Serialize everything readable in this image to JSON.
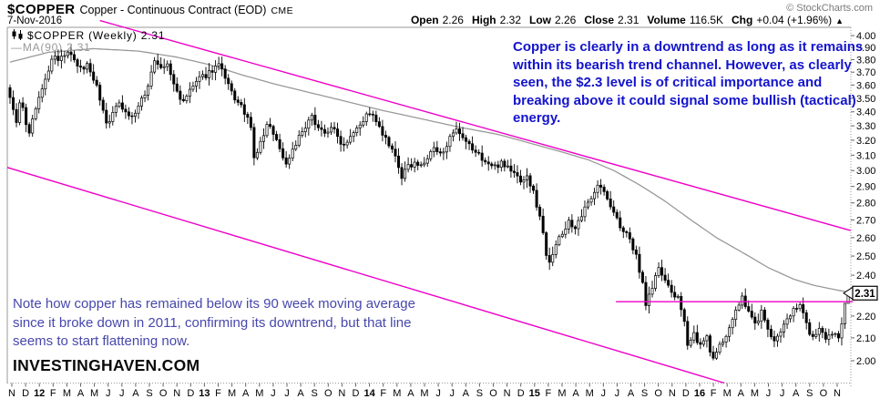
{
  "header": {
    "symbol": "$COPPER",
    "description": "Copper - Continuous Contract (EOD)",
    "exchange": "CME",
    "source": "© StockCharts.com",
    "date": "7-Nov-2016",
    "quote": [
      {
        "label": "Open",
        "value": "2.26"
      },
      {
        "label": "High",
        "value": "2.32"
      },
      {
        "label": "Low",
        "value": "2.26"
      },
      {
        "label": "Close",
        "value": "2.31"
      },
      {
        "label": "Volume",
        "value": "116.5K"
      },
      {
        "label": "Chg",
        "value": "+0.04 (+1.96%)"
      }
    ],
    "chg_icon": "▲"
  },
  "legend": {
    "series_label": "$COPPER (Weekly) 2.31",
    "ma_dash": "—",
    "ma_label": "MA(90) 2.31"
  },
  "annotations": {
    "top_note": "Copper is clearly in a downtrend as long as it remains within its bearish trend channel. However, as clearly seen, the $2.3 level is of critical importance and breaking above it could signal some bullish (tactical) energy.",
    "bottom_note": "Note how copper has remained below its 90 week moving average since it broke down in 2011, confirming its downtrend, but that line seems to start flattening now.",
    "watermark": "INVESTINGHAVEN.COM",
    "price_callout": "2.31"
  },
  "colors": {
    "trend_magenta": "#ee00c8",
    "ma_gray": "#999999",
    "candle_black": "#000000",
    "axis_gray": "#9a9a9a",
    "top_note_blue": "#1414cc",
    "bottom_note_blue": "#4747ad"
  },
  "chart_data": {
    "type": "candlestick",
    "symbol": "$COPPER",
    "timeframe": "weekly",
    "title": "$COPPER (Weekly)",
    "y_axis": {
      "scale": "log",
      "min": 1.907,
      "max": 4.071,
      "tick_min": 2.0,
      "tick_max": 4.0,
      "tick_step": 0.1
    },
    "x_axis_months": [
      "N",
      "D",
      "12",
      "F",
      "M",
      "A",
      "M",
      "J",
      "J",
      "A",
      "S",
      "O",
      "N",
      "D",
      "13",
      "F",
      "M",
      "A",
      "M",
      "J",
      "J",
      "A",
      "S",
      "O",
      "N",
      "D",
      "14",
      "F",
      "M",
      "A",
      "M",
      "J",
      "J",
      "A",
      "S",
      "O",
      "N",
      "D",
      "15",
      "F",
      "M",
      "A",
      "M",
      "J",
      "J",
      "A",
      "S",
      "O",
      "N",
      "D",
      "16",
      "F",
      "M",
      "A",
      "M",
      "J",
      "J",
      "A",
      "S",
      "O",
      "N"
    ],
    "weeks_total": 262,
    "first_open": 3.58,
    "close_anchors": [
      [
        0,
        3.52
      ],
      [
        1,
        3.4
      ],
      [
        2,
        3.34
      ],
      [
        3,
        3.45
      ],
      [
        4,
        3.42
      ],
      [
        5,
        3.3
      ],
      [
        6,
        3.26
      ],
      [
        7,
        3.33
      ],
      [
        8,
        3.44
      ],
      [
        9,
        3.5
      ],
      [
        10,
        3.56
      ],
      [
        12,
        3.72
      ],
      [
        14,
        3.84
      ],
      [
        15,
        3.78
      ],
      [
        16,
        3.82
      ],
      [
        18,
        3.86
      ],
      [
        20,
        3.78
      ],
      [
        22,
        3.72
      ],
      [
        24,
        3.76
      ],
      [
        26,
        3.66
      ],
      [
        28,
        3.5
      ],
      [
        30,
        3.32
      ],
      [
        32,
        3.38
      ],
      [
        34,
        3.48
      ],
      [
        36,
        3.4
      ],
      [
        38,
        3.36
      ],
      [
        40,
        3.44
      ],
      [
        42,
        3.52
      ],
      [
        44,
        3.7
      ],
      [
        45,
        3.8
      ],
      [
        47,
        3.72
      ],
      [
        49,
        3.76
      ],
      [
        51,
        3.6
      ],
      [
        54,
        3.46
      ],
      [
        56,
        3.56
      ],
      [
        58,
        3.62
      ],
      [
        60,
        3.66
      ],
      [
        63,
        3.72
      ],
      [
        65,
        3.76
      ],
      [
        67,
        3.64
      ],
      [
        69,
        3.54
      ],
      [
        71,
        3.46
      ],
      [
        73,
        3.4
      ],
      [
        75,
        3.28
      ],
      [
        76,
        3.07
      ],
      [
        78,
        3.18
      ],
      [
        80,
        3.3
      ],
      [
        82,
        3.26
      ],
      [
        84,
        3.14
      ],
      [
        86,
        3.04
      ],
      [
        88,
        3.14
      ],
      [
        90,
        3.22
      ],
      [
        92,
        3.28
      ],
      [
        94,
        3.36
      ],
      [
        96,
        3.3
      ],
      [
        98,
        3.24
      ],
      [
        100,
        3.3
      ],
      [
        102,
        3.22
      ],
      [
        104,
        3.17
      ],
      [
        106,
        3.24
      ],
      [
        108,
        3.3
      ],
      [
        110,
        3.34
      ],
      [
        112,
        3.4
      ],
      [
        114,
        3.32
      ],
      [
        116,
        3.24
      ],
      [
        118,
        3.16
      ],
      [
        120,
        3.08
      ],
      [
        122,
        2.96
      ],
      [
        124,
        3.02
      ],
      [
        126,
        3.06
      ],
      [
        128,
        3.02
      ],
      [
        130,
        3.08
      ],
      [
        132,
        3.14
      ],
      [
        134,
        3.1
      ],
      [
        136,
        3.18
      ],
      [
        139,
        3.26
      ],
      [
        141,
        3.2
      ],
      [
        143,
        3.16
      ],
      [
        145,
        3.12
      ],
      [
        147,
        3.08
      ],
      [
        149,
        3.04
      ],
      [
        151,
        3.02
      ],
      [
        153,
        3.06
      ],
      [
        155,
        3.02
      ],
      [
        157,
        2.98
      ],
      [
        159,
        2.94
      ],
      [
        161,
        2.96
      ],
      [
        163,
        2.86
      ],
      [
        165,
        2.72
      ],
      [
        167,
        2.52
      ],
      [
        168,
        2.48
      ],
      [
        170,
        2.56
      ],
      [
        172,
        2.62
      ],
      [
        174,
        2.7
      ],
      [
        176,
        2.64
      ],
      [
        178,
        2.72
      ],
      [
        180,
        2.8
      ],
      [
        182,
        2.88
      ],
      [
        183,
        2.92
      ],
      [
        185,
        2.86
      ],
      [
        187,
        2.78
      ],
      [
        189,
        2.7
      ],
      [
        191,
        2.64
      ],
      [
        193,
        2.58
      ],
      [
        195,
        2.5
      ],
      [
        197,
        2.36
      ],
      [
        198,
        2.26
      ],
      [
        200,
        2.34
      ],
      [
        202,
        2.44
      ],
      [
        204,
        2.36
      ],
      [
        206,
        2.32
      ],
      [
        208,
        2.28
      ],
      [
        210,
        2.16
      ],
      [
        211,
        2.08
      ],
      [
        213,
        2.12
      ],
      [
        215,
        2.06
      ],
      [
        217,
        2.1
      ],
      [
        219,
        2.0
      ],
      [
        221,
        2.06
      ],
      [
        223,
        2.12
      ],
      [
        225,
        2.18
      ],
      [
        227,
        2.26
      ],
      [
        228,
        2.28
      ],
      [
        230,
        2.22
      ],
      [
        232,
        2.16
      ],
      [
        234,
        2.22
      ],
      [
        236,
        2.14
      ],
      [
        238,
        2.08
      ],
      [
        240,
        2.12
      ],
      [
        242,
        2.18
      ],
      [
        244,
        2.24
      ],
      [
        246,
        2.26
      ],
      [
        248,
        2.16
      ],
      [
        250,
        2.1
      ],
      [
        252,
        2.14
      ],
      [
        254,
        2.08
      ],
      [
        256,
        2.12
      ],
      [
        258,
        2.1
      ],
      [
        259,
        2.17
      ],
      [
        260,
        2.26
      ],
      [
        261,
        2.31
      ]
    ],
    "last_candle": {
      "open": 2.26,
      "high": 2.32,
      "low": 2.26,
      "close": 2.31
    },
    "ma90_anchors": [
      [
        0,
        3.78
      ],
      [
        12,
        3.86
      ],
      [
        26,
        3.89
      ],
      [
        40,
        3.87
      ],
      [
        52,
        3.82
      ],
      [
        62,
        3.76
      ],
      [
        72,
        3.68
      ],
      [
        82,
        3.61
      ],
      [
        92,
        3.55
      ],
      [
        104,
        3.48
      ],
      [
        116,
        3.41
      ],
      [
        128,
        3.35
      ],
      [
        140,
        3.29
      ],
      [
        152,
        3.24
      ],
      [
        162,
        3.18
      ],
      [
        172,
        3.12
      ],
      [
        180,
        3.07
      ],
      [
        188,
        3.0
      ],
      [
        196,
        2.91
      ],
      [
        204,
        2.81
      ],
      [
        212,
        2.7
      ],
      [
        220,
        2.6
      ],
      [
        228,
        2.52
      ],
      [
        236,
        2.44
      ],
      [
        244,
        2.38
      ],
      [
        250,
        2.35
      ],
      [
        256,
        2.33
      ],
      [
        261,
        2.315
      ]
    ],
    "trend_lines": {
      "upper_channel": {
        "x1_week": 28,
        "p1": 4.13,
        "x2_week": 261.8,
        "p2": 2.64
      },
      "lower_channel": {
        "x1_week": -0.85,
        "p1": 3.02,
        "x2_week": 222.5,
        "p2": 1.907
      },
      "horizontal_support": {
        "from_week": 188.7,
        "to_week": 262.5,
        "price": 2.268
      }
    }
  }
}
